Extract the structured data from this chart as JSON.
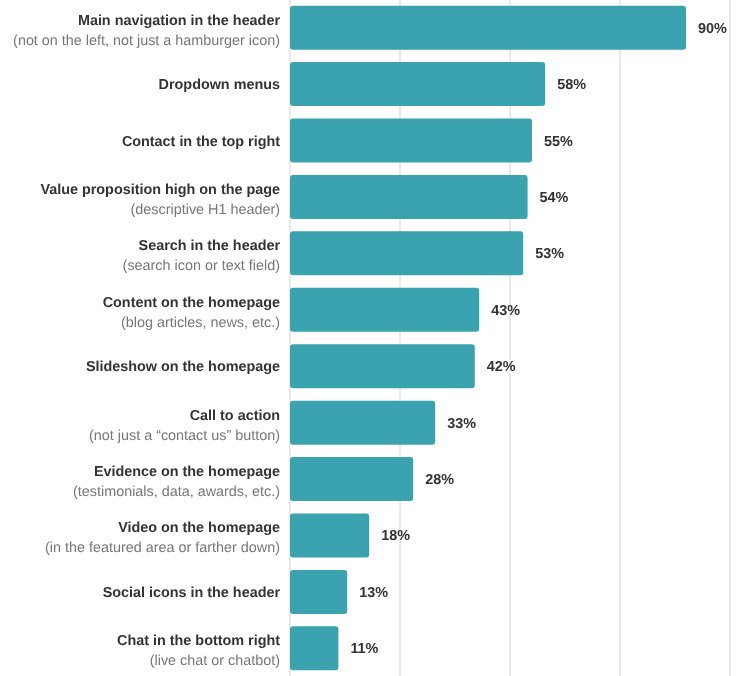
{
  "chart_data": {
    "type": "bar",
    "orientation": "horizontal",
    "categories": [
      "Main navigation in the header\n(not on the left, not just a hamburger icon)",
      "Dropdown menus",
      "Contact in the top right",
      "Value proposition high on the page\n(descriptive H1 header)",
      "Search in the header\n(search icon or text field)",
      "Content on the homepage\n(blog articles, news, etc.)",
      "Slideshow  on the homepage",
      "Call to action\n(not just a “contact us” button)",
      "Evidence on the homepage\n(testimonials, data, awards, etc.)",
      "Video on the homepage\n(in the featured area or farther down)",
      "Social icons in the header",
      "Chat in the bottom right\n(live chat or chatbot)"
    ],
    "values": [
      90,
      58,
      55,
      54,
      53,
      43,
      42,
      33,
      28,
      18,
      13,
      11
    ],
    "value_labels": [
      "90%",
      "58%",
      "55%",
      "54%",
      "53%",
      "43%",
      "42%",
      "33%",
      "28%",
      "18%",
      "13%",
      "11%"
    ],
    "color": "#3ba3b0",
    "xlim": [
      0,
      100
    ],
    "xticks": [
      {
        "value": 25,
        "label": null
      },
      {
        "value": 50,
        "label": null
      },
      {
        "value": 75,
        "label": null
      },
      {
        "value": 100,
        "label": null
      }
    ],
    "grid": "x"
  }
}
